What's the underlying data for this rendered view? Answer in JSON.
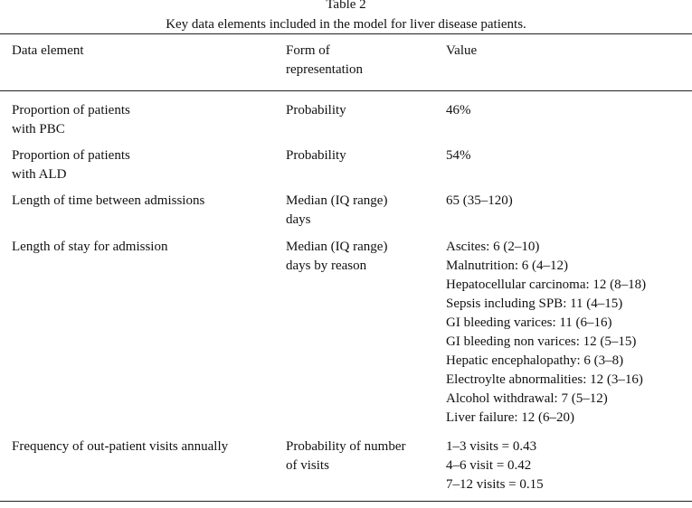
{
  "table": {
    "label": "Table 2",
    "title": "Key data elements included in the model for liver disease patients.",
    "headers": [
      [
        "Data element"
      ],
      [
        "Form of",
        "representation"
      ],
      [
        "Value"
      ]
    ],
    "rows": [
      {
        "element": [
          "Proportion of patients",
          "with PBC"
        ],
        "form": [
          "Probability"
        ],
        "value": [
          "46%"
        ]
      },
      {
        "element": [
          "Proportion of patients",
          "with ALD"
        ],
        "form": [
          "Probability"
        ],
        "value": [
          "54%"
        ]
      },
      {
        "element": [
          "Length of time between admissions"
        ],
        "form": [
          "Median (IQ range)",
          "days"
        ],
        "value": [
          "65 (35–120)"
        ]
      },
      {
        "element": [
          "Length of stay for admission"
        ],
        "form": [
          "Median (IQ range)",
          "days by reason"
        ],
        "value": [
          "Ascites: 6 (2–10)",
          "Malnutrition: 6 (4–12)",
          "Hepatocellular carcinoma: 12 (8–18)",
          "Sepsis including SPB: 11 (4–15)",
          "GI bleeding varices: 11 (6–16)",
          "GI bleeding non varices: 12 (5–15)",
          "Hepatic encephalopathy: 6 (3–8)",
          "Electroylte abnormalities: 12 (3–16)",
          "Alcohol withdrawal: 7 (5–12)",
          "Liver failure: 12 (6–20)"
        ]
      },
      {
        "element": [
          "Frequency of out-patient visits annually"
        ],
        "form": [
          "Probability of number",
          "of visits"
        ],
        "value": [
          "1–3 visits = 0.43",
          "4–6 visit = 0.42",
          "7–12 visits = 0.15"
        ]
      }
    ]
  }
}
